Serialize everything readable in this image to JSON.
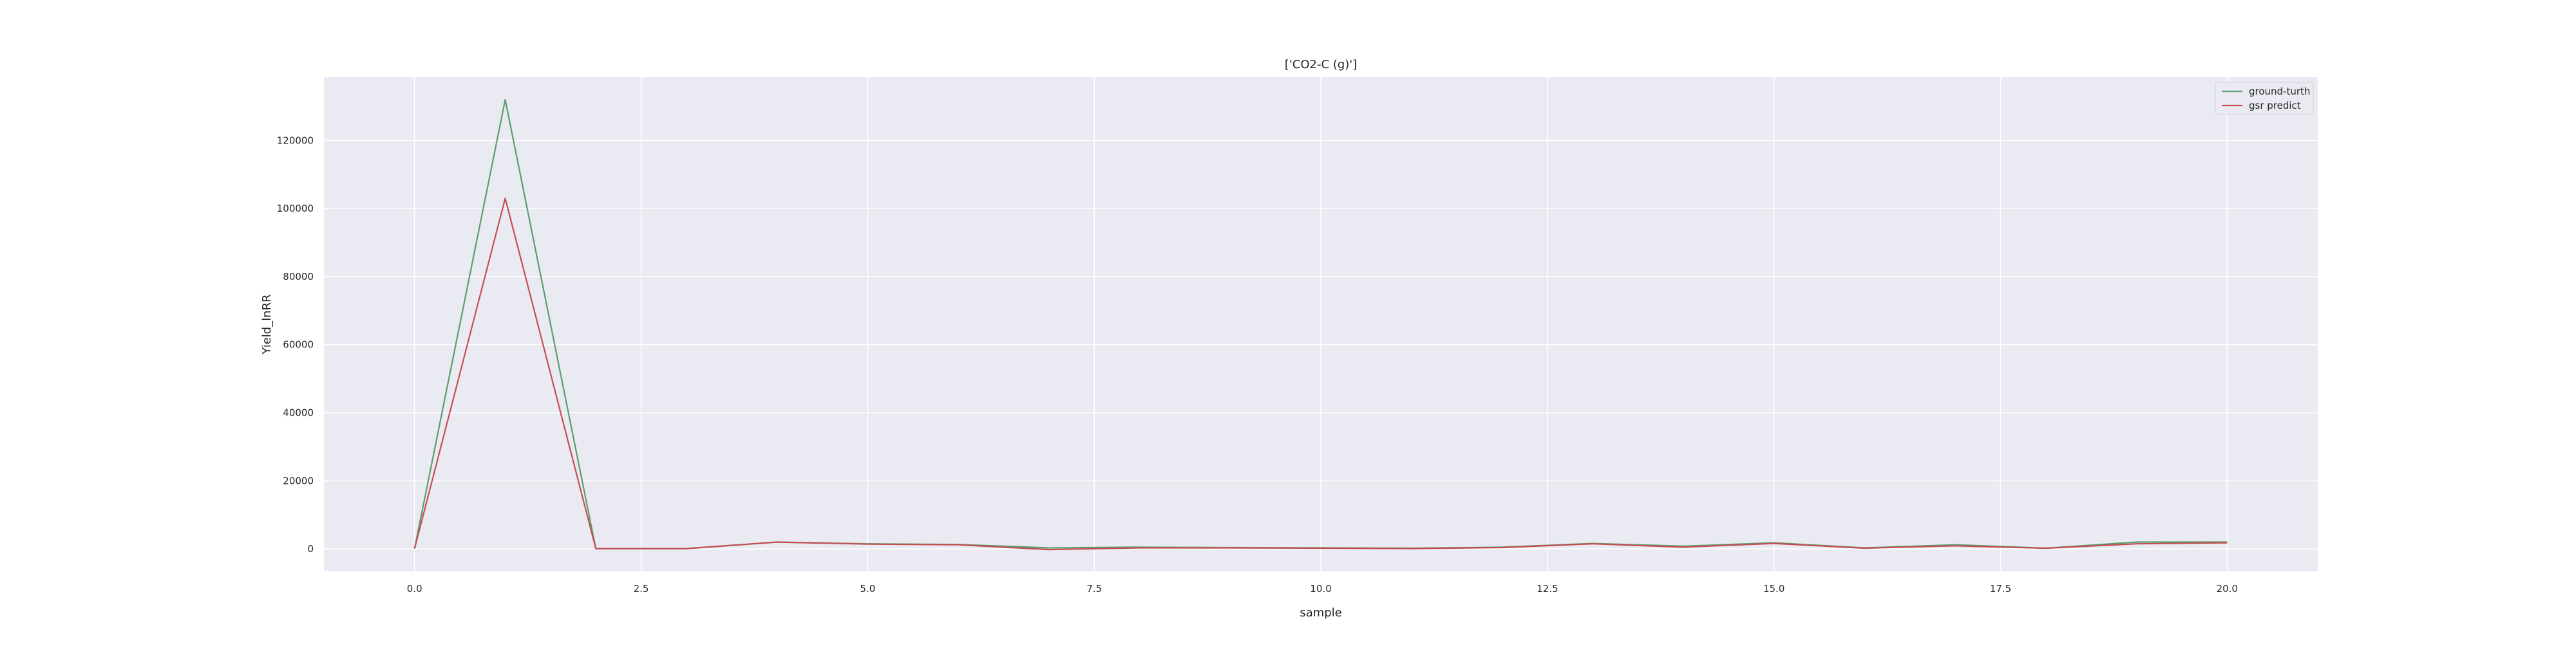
{
  "chart_data": {
    "type": "line",
    "title": "['CO2-C (g)']",
    "xlabel": "sample",
    "ylabel": "Yield_lnRR",
    "xlim": [
      -1,
      21
    ],
    "ylim": [
      -6600,
      138600
    ],
    "x_ticks": [
      0.0,
      2.5,
      5.0,
      7.5,
      10.0,
      12.5,
      15.0,
      17.5,
      20.0
    ],
    "x_tick_labels": [
      "0.0",
      "2.5",
      "5.0",
      "7.5",
      "10.0",
      "12.5",
      "15.0",
      "17.5",
      "20.0"
    ],
    "y_ticks": [
      0,
      20000,
      40000,
      60000,
      80000,
      100000,
      120000
    ],
    "y_tick_labels": [
      "0",
      "20000",
      "40000",
      "60000",
      "80000",
      "100000",
      "120000"
    ],
    "grid": true,
    "legend_position": "top-right",
    "x": [
      0,
      1,
      2,
      3,
      4,
      5,
      6,
      7,
      8,
      9,
      10,
      11,
      12,
      13,
      14,
      15,
      16,
      17,
      18,
      19,
      20
    ],
    "series": [
      {
        "name": "ground-turth",
        "color": "#5a9e6f",
        "values": [
          100,
          132000,
          100,
          100,
          2000,
          1500,
          1300,
          300,
          500,
          400,
          300,
          200,
          500,
          1600,
          800,
          1800,
          300,
          1200,
          200,
          2000,
          2000
        ]
      },
      {
        "name": "gsr predict",
        "color": "#c44e52",
        "values": [
          100,
          103000,
          100,
          100,
          2000,
          1400,
          1200,
          -200,
          300,
          300,
          200,
          100,
          400,
          1500,
          500,
          1600,
          200,
          900,
          200,
          1500,
          1800
        ]
      }
    ]
  }
}
